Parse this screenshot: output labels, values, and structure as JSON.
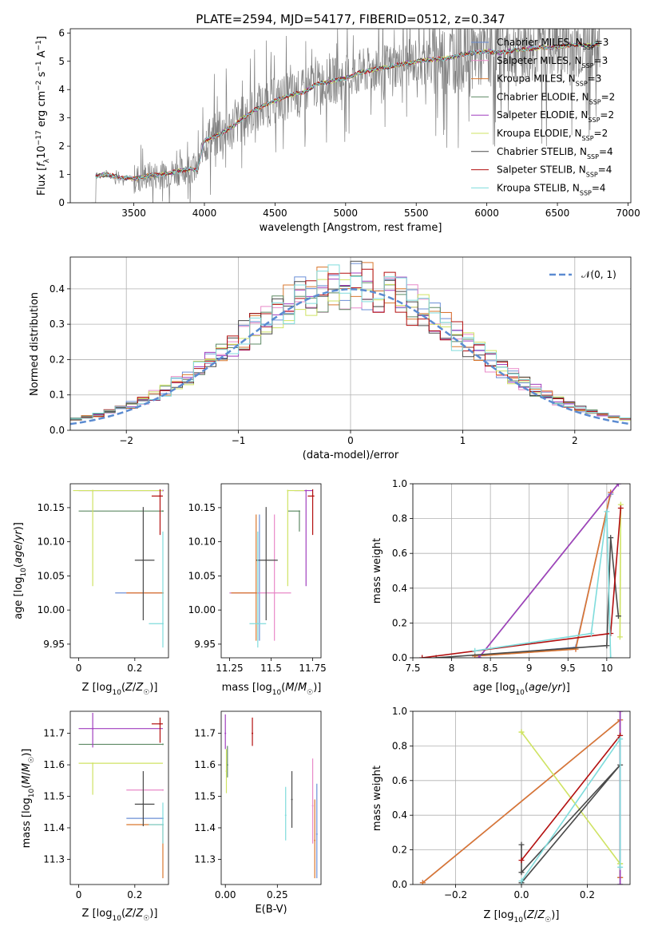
{
  "title": "PLATE=2594, MJD=54177, FIBERID=0512, z=0.347",
  "colors": {
    "Chabrier MILES": "#6b8fd6",
    "Salpeter MILES": "#e889c8",
    "Kroupa MILES": "#d9782f",
    "Chabrier ELODIE": "#5e8a64",
    "Salpeter ELODIE": "#a13fbf",
    "Kroupa ELODIE": "#cfe363",
    "Chabrier STELIB": "#4a4a4a",
    "Salpeter STELIB": "#b30f0f",
    "Kroupa STELIB": "#7fdcdc",
    "data_gray": "#808080",
    "normal": "#5b8bd1"
  },
  "chart_data": [
    {
      "id": "spectrum",
      "type": "line",
      "xlabel": "wavelength [Angstrom, rest frame]",
      "ylabel": "Flux [f_λ 10^-17 erg cm^-2 s^-1 A^-1]",
      "ylabel_parts": {
        "a": "Flux [",
        "b": "f",
        "b_sub": "λ",
        "c": "10",
        "c_sup": "−17",
        "d": " erg cm",
        "d_sup": "−2",
        "e": " s",
        "e_sup": "−1",
        "f": " A",
        "f_sup": "−1",
        "g": "]"
      },
      "xlim": [
        3050,
        7020
      ],
      "ylim": [
        0,
        6.15
      ],
      "xticks": [
        3500,
        4000,
        4500,
        5000,
        5500,
        6000,
        6500,
        7000
      ],
      "yticks": [
        0,
        1,
        2,
        3,
        4,
        5,
        6
      ],
      "legend_location": "upper right",
      "legend": [
        {
          "base": "Chabrier MILES, N",
          "sub": "SSP",
          "tail": "=3"
        },
        {
          "base": "Salpeter MILES, N",
          "sub": "SSP",
          "tail": "=3"
        },
        {
          "base": "Kroupa MILES, N",
          "sub": "SSP",
          "tail": "=3"
        },
        {
          "base": "Chabrier ELODIE, N",
          "sub": "SSP",
          "tail": "=2"
        },
        {
          "base": "Salpeter ELODIE, N",
          "sub": "SSP",
          "tail": "=2"
        },
        {
          "base": "Kroupa ELODIE, N",
          "sub": "SSP",
          "tail": "=2"
        },
        {
          "base": "Chabrier STELIB, N",
          "sub": "SSP",
          "tail": "=4"
        },
        {
          "base": "Salpeter STELIB, N",
          "sub": "SSP",
          "tail": "=4"
        },
        {
          "base": "Kroupa STELIB, N",
          "sub": "SSP",
          "tail": "=4"
        }
      ],
      "model_continuum": {
        "x": [
          3200,
          3230,
          3300,
          3400,
          3500,
          3600,
          3700,
          3800,
          3900,
          3950,
          4000,
          4100,
          4200,
          4300,
          4400,
          4500,
          4600,
          4700,
          4800,
          4900,
          5000,
          5100,
          5200,
          5300,
          5400,
          5500,
          5600,
          5700,
          5800,
          5900,
          6000,
          6100,
          6200,
          6300,
          6400,
          6500,
          6600,
          6700,
          6800
        ],
        "y": [
          0,
          0.95,
          1.0,
          0.9,
          0.85,
          0.95,
          1.0,
          1.1,
          1.2,
          1.15,
          2.2,
          2.4,
          2.7,
          3.1,
          3.4,
          3.6,
          3.8,
          3.9,
          4.2,
          4.3,
          4.4,
          4.6,
          4.7,
          4.8,
          4.9,
          5.0,
          5.05,
          5.1,
          5.2,
          5.3,
          5.35,
          5.3,
          5.4,
          5.45,
          5.5,
          5.5,
          5.6,
          5.55,
          5.6
        ]
      },
      "data_noise_note_removed": true
    },
    {
      "id": "residual_hist",
      "type": "histogram",
      "xlabel": "(data-model)/error",
      "ylabel": "Normed distribution",
      "xlim": [
        -2.5,
        2.5
      ],
      "ylim": [
        0,
        0.49
      ],
      "xticks": [
        -2,
        -1,
        0,
        1,
        2
      ],
      "xtick_labels": [
        "−2",
        "−1",
        "0",
        "1",
        "2"
      ],
      "yticks": [
        0.0,
        0.1,
        0.2,
        0.3,
        0.4
      ],
      "yticks_labels": [
        "0.0",
        "0.1",
        "0.2",
        "0.3",
        "0.4"
      ],
      "grid": true,
      "bin_width": 0.1,
      "legend": "𝒩(0, 1)",
      "legend_location": "upper right"
    },
    {
      "id": "age_vs_Z",
      "type": "scatter",
      "xlabel": "Z [log10(Z/Z☉)]",
      "ylabel": "age [log10(age/yr)]",
      "xlim": [
        -0.03,
        0.32
      ],
      "ylim": [
        9.93,
        10.185
      ],
      "xticks": [
        0.0,
        0.2
      ],
      "yticks": [
        9.95,
        10.0,
        10.05,
        10.1,
        10.15
      ],
      "points": [
        {
          "model": "Chabrier MILES",
          "x": 0.3,
          "y": 10.025,
          "xerr": [
            0.17,
            0.0
          ],
          "yerr": [
            0.0,
            0.0
          ]
        },
        {
          "model": "Salpeter MILES",
          "x": 0.3,
          "y": 10.025,
          "xerr": [
            0.13,
            0.0
          ],
          "yerr": [
            0.0,
            0.0
          ]
        },
        {
          "model": "Kroupa MILES",
          "x": 0.3,
          "y": 10.025,
          "xerr": [
            0.13,
            0.0
          ],
          "yerr": [
            0.0,
            0.0
          ]
        },
        {
          "model": "Chabrier ELODIE",
          "x": 0.3,
          "y": 10.145,
          "xerr": [
            0.3,
            0.0
          ],
          "yerr": [
            0.0,
            0.0
          ]
        },
        {
          "model": "Salpeter ELODIE",
          "x": 0.3,
          "y": 10.175,
          "xerr": [
            0.3,
            0.0
          ],
          "yerr": [
            0.0,
            0.0
          ]
        },
        {
          "model": "Kroupa ELODIE",
          "x": 0.05,
          "y": 10.175,
          "xerr": [
            0.07,
            0.25
          ],
          "yerr": [
            0.14,
            0.0
          ]
        },
        {
          "model": "Chabrier STELIB",
          "x": 0.23,
          "y": 10.073,
          "xerr": [
            0.03,
            0.04
          ],
          "yerr": [
            0.088,
            0.078
          ]
        },
        {
          "model": "Salpeter STELIB",
          "x": 0.29,
          "y": 10.167,
          "xerr": [
            0.03,
            0.01
          ],
          "yerr": [
            0.057,
            0.01
          ]
        },
        {
          "model": "Kroupa STELIB",
          "x": 0.3,
          "y": 9.98,
          "xerr": [
            0.05,
            0.0
          ],
          "yerr": [
            0.035,
            0.135
          ]
        }
      ]
    },
    {
      "id": "age_vs_mass",
      "type": "scatter",
      "xlabel": "mass [log10(M/M☉)]",
      "ylabel": "",
      "xlim": [
        11.2,
        11.8
      ],
      "ylim": [
        9.93,
        10.185
      ],
      "xticks": [
        11.25,
        11.5,
        11.75
      ],
      "yticks": [
        9.95,
        10.0,
        10.05,
        10.1,
        10.15
      ],
      "points": [
        {
          "model": "Chabrier MILES",
          "x": 11.43,
          "y": 10.025,
          "xerr": [
            0.18,
            0.0
          ],
          "yerr": [
            0.07,
            0.115
          ]
        },
        {
          "model": "Salpeter MILES",
          "x": 11.52,
          "y": 10.025,
          "xerr": [
            0.27,
            0.1
          ],
          "yerr": [
            0.07,
            0.115
          ]
        },
        {
          "model": "Kroupa MILES",
          "x": 11.41,
          "y": 10.025,
          "xerr": [
            0.15,
            0.0
          ],
          "yerr": [
            0.07,
            0.115
          ]
        },
        {
          "model": "Chabrier ELODIE",
          "x": 11.67,
          "y": 10.145,
          "xerr": [
            0.07,
            0.0
          ],
          "yerr": [
            0.03,
            0.0
          ]
        },
        {
          "model": "Salpeter ELODIE",
          "x": 11.71,
          "y": 10.175,
          "xerr": [
            0.07,
            0.04
          ],
          "yerr": [
            0.14,
            0.0
          ]
        },
        {
          "model": "Kroupa ELODIE",
          "x": 11.6,
          "y": 10.175,
          "xerr": [
            0.0,
            0.1
          ],
          "yerr": [
            0.14,
            0.0
          ]
        },
        {
          "model": "Chabrier STELIB",
          "x": 11.47,
          "y": 10.073,
          "xerr": [
            0.06,
            0.07
          ],
          "yerr": [
            0.088,
            0.078
          ]
        },
        {
          "model": "Salpeter STELIB",
          "x": 11.75,
          "y": 10.167,
          "xerr": [
            0.03,
            0.01
          ],
          "yerr": [
            0.057,
            0.01
          ]
        },
        {
          "model": "Kroupa STELIB",
          "x": 11.42,
          "y": 9.98,
          "xerr": [
            0.05,
            0.05
          ],
          "yerr": [
            0.035,
            0.135
          ]
        }
      ]
    },
    {
      "id": "massweight_vs_age",
      "type": "line",
      "xlabel": "age [log10(age/yr)]",
      "ylabel": "mass weight",
      "xlim": [
        7.5,
        10.3
      ],
      "ylim": [
        0.0,
        1.0
      ],
      "xticks": [
        7.5,
        8.0,
        8.5,
        9.0,
        9.5,
        10.0
      ],
      "yticks": [
        0.0,
        0.2,
        0.4,
        0.6,
        0.8,
        1.0
      ],
      "grid": true,
      "series": [
        {
          "model": "Chabrier MILES",
          "x": [
            8.3,
            9.6,
            10.05
          ],
          "y": [
            0.01,
            0.06,
            0.94
          ]
        },
        {
          "model": "Salpeter MILES",
          "x": [
            8.3,
            9.6,
            10.05
          ],
          "y": [
            0.01,
            0.05,
            0.95
          ]
        },
        {
          "model": "Kroupa MILES",
          "x": [
            8.3,
            9.6,
            10.05
          ],
          "y": [
            0.01,
            0.05,
            0.95
          ]
        },
        {
          "model": "Chabrier ELODIE",
          "x": [
            8.35,
            10.15
          ],
          "y": [
            0.0,
            1.0
          ]
        },
        {
          "model": "Salpeter ELODIE",
          "x": [
            8.35,
            10.15
          ],
          "y": [
            0.0,
            1.0
          ]
        },
        {
          "model": "Kroupa ELODIE",
          "x": [
            10.17,
            10.18
          ],
          "y": [
            0.12,
            0.88
          ]
        },
        {
          "model": "Chabrier STELIB",
          "x": [
            7.8,
            10.0,
            10.05,
            10.15
          ],
          "y": [
            0.0,
            0.07,
            0.69,
            0.24
          ]
        },
        {
          "model": "Salpeter STELIB",
          "x": [
            7.62,
            10.05,
            10.18
          ],
          "y": [
            0.0,
            0.14,
            0.86
          ]
        },
        {
          "model": "Kroupa STELIB",
          "x": [
            8.3,
            9.8,
            10.0,
            10.05
          ],
          "y": [
            0.04,
            0.14,
            0.84,
            0.0
          ]
        }
      ]
    },
    {
      "id": "mass_vs_Z",
      "type": "scatter",
      "xlabel": "Z [log10(Z/Z☉)]",
      "ylabel": "mass [log10(M/M☉)]",
      "xlim": [
        -0.03,
        0.32
      ],
      "ylim": [
        11.22,
        11.77
      ],
      "xticks": [
        0.0,
        0.2
      ],
      "yticks": [
        11.3,
        11.4,
        11.5,
        11.6,
        11.7
      ],
      "points": [
        {
          "model": "Chabrier MILES",
          "x": 0.3,
          "y": 11.43,
          "xerr": [
            0.13,
            0.0
          ],
          "yerr": [
            0.0,
            0.0
          ]
        },
        {
          "model": "Salpeter MILES",
          "x": 0.3,
          "y": 11.52,
          "xerr": [
            0.13,
            0.0
          ],
          "yerr": [
            0.0,
            0.0
          ]
        },
        {
          "model": "Kroupa MILES",
          "x": 0.3,
          "y": 11.41,
          "xerr": [
            0.13,
            0.0
          ],
          "yerr": [
            0.17,
            0.0
          ]
        },
        {
          "model": "Chabrier ELODIE",
          "x": 0.3,
          "y": 11.665,
          "xerr": [
            0.3,
            0.0
          ],
          "yerr": [
            0.0,
            0.0
          ]
        },
        {
          "model": "Salpeter ELODIE",
          "x": 0.05,
          "y": 11.715,
          "xerr": [
            0.05,
            0.25
          ],
          "yerr": [
            0.06,
            0.05
          ]
        },
        {
          "model": "Kroupa ELODIE",
          "x": 0.05,
          "y": 11.605,
          "xerr": [
            0.05,
            0.25
          ],
          "yerr": [
            0.1,
            0.0
          ]
        },
        {
          "model": "Chabrier STELIB",
          "x": 0.23,
          "y": 11.475,
          "xerr": [
            0.03,
            0.04
          ],
          "yerr": [
            0.07,
            0.105
          ]
        },
        {
          "model": "Salpeter STELIB",
          "x": 0.29,
          "y": 11.73,
          "xerr": [
            0.03,
            0.01
          ],
          "yerr": [
            0.06,
            0.02
          ]
        },
        {
          "model": "Kroupa STELIB",
          "x": 0.3,
          "y": 11.41,
          "xerr": [
            0.05,
            0.0
          ],
          "yerr": [
            0.06,
            0.07
          ]
        }
      ]
    },
    {
      "id": "mass_vs_ebv",
      "type": "scatter",
      "xlabel": "E(B-V)",
      "ylabel": "",
      "xlim": [
        -0.02,
        0.46
      ],
      "ylim": [
        11.22,
        11.77
      ],
      "xticks": [
        0.0,
        0.25
      ],
      "xtick_labels": [
        "0.00",
        "0.25"
      ],
      "yticks": [
        11.3,
        11.4,
        11.5,
        11.6,
        11.7
      ],
      "points": [
        {
          "model": "Chabrier MILES",
          "x": 0.44,
          "y": 11.38,
          "yerr": [
            0.14,
            0.16
          ]
        },
        {
          "model": "Salpeter MILES",
          "x": 0.42,
          "y": 11.47,
          "yerr": [
            0.12,
            0.15
          ]
        },
        {
          "model": "Kroupa MILES",
          "x": 0.43,
          "y": 11.36,
          "yerr": [
            0.12,
            0.13
          ]
        },
        {
          "model": "Chabrier ELODIE",
          "x": 0.01,
          "y": 11.6,
          "yerr": [
            0.04,
            0.06
          ]
        },
        {
          "model": "Salpeter ELODIE",
          "x": 0.0,
          "y": 11.7,
          "yerr": [
            0.05,
            0.06
          ]
        },
        {
          "model": "Kroupa ELODIE",
          "x": 0.005,
          "y": 11.58,
          "yerr": [
            0.07,
            0.07
          ]
        },
        {
          "model": "Chabrier STELIB",
          "x": 0.32,
          "y": 11.49,
          "yerr": [
            0.09,
            0.09
          ]
        },
        {
          "model": "Salpeter STELIB",
          "x": 0.13,
          "y": 11.7,
          "yerr": [
            0.04,
            0.05
          ]
        },
        {
          "model": "Kroupa STELIB",
          "x": 0.29,
          "y": 11.44,
          "yerr": [
            0.08,
            0.09
          ]
        }
      ]
    },
    {
      "id": "massweight_vs_Z",
      "type": "line",
      "xlabel": "Z [log10(Z/Z☉)]",
      "ylabel": "mass weight",
      "xlim": [
        -0.33,
        0.33
      ],
      "ylim": [
        0.0,
        1.0
      ],
      "xticks": [
        -0.2,
        0.0,
        0.2
      ],
      "xtick_labels": [
        "−0.2",
        "0.0",
        "0.2"
      ],
      "yticks": [
        0.0,
        0.2,
        0.4,
        0.6,
        0.8,
        1.0
      ],
      "grid": true,
      "series": [
        {
          "model": "Chabrier MILES",
          "x": [
            -0.3,
            0.3,
            0.3
          ],
          "y": [
            0.01,
            0.95,
            0.04
          ]
        },
        {
          "model": "Salpeter MILES",
          "x": [
            -0.3,
            0.3,
            0.3
          ],
          "y": [
            0.01,
            0.95,
            0.04
          ]
        },
        {
          "model": "Kroupa MILES",
          "x": [
            -0.3,
            0.3,
            0.3
          ],
          "y": [
            0.01,
            0.95,
            0.04
          ]
        },
        {
          "model": "Chabrier ELODIE",
          "x": [
            0.3,
            0.3
          ],
          "y": [
            0.0,
            1.0
          ]
        },
        {
          "model": "Salpeter ELODIE",
          "x": [
            0.3,
            0.3
          ],
          "y": [
            0.0,
            1.0
          ]
        },
        {
          "model": "Kroupa ELODIE",
          "x": [
            0.0,
            0.3,
            0.0,
            0.3
          ],
          "y": [
            0.88,
            0.12,
            0.88,
            0.12
          ]
        },
        {
          "model": "Chabrier STELIB",
          "x": [
            0.0,
            0.0,
            0.3,
            0.0
          ],
          "y": [
            0.23,
            0.07,
            0.69,
            0.01
          ]
        },
        {
          "model": "Salpeter STELIB",
          "x": [
            0.0,
            0.3
          ],
          "y": [
            0.14,
            0.86
          ]
        },
        {
          "model": "Kroupa STELIB",
          "x": [
            0.0,
            0.3,
            0.3
          ],
          "y": [
            0.02,
            0.84,
            0.1
          ]
        }
      ]
    }
  ]
}
